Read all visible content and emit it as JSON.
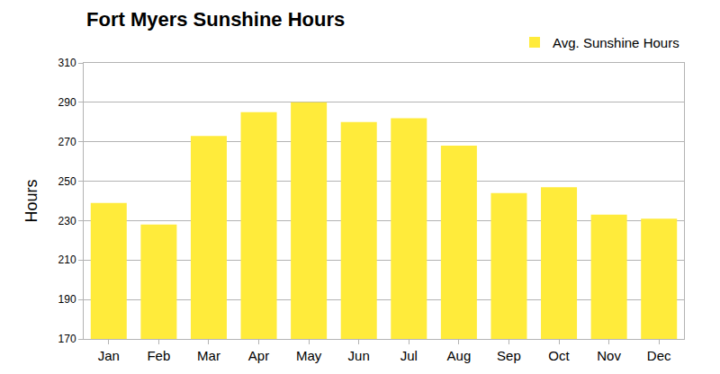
{
  "chart_data": {
    "type": "bar",
    "title": "Fort Myers Sunshine Hours",
    "y_label": "Hours",
    "categories": [
      "Jan",
      "Feb",
      "Mar",
      "Apr",
      "May",
      "Jun",
      "Jul",
      "Aug",
      "Sep",
      "Oct",
      "Nov",
      "Dec"
    ],
    "series": [
      {
        "name": "Avg. Sunshine Hours",
        "color": "#ffeb3b",
        "values": [
          239,
          228,
          273,
          285,
          290,
          280,
          282,
          268,
          244,
          247,
          233,
          231
        ]
      }
    ],
    "ylim": [
      170,
      310
    ],
    "yticks": [
      170,
      190,
      210,
      230,
      250,
      270,
      290,
      310
    ],
    "grid": true,
    "legend": "top right"
  }
}
